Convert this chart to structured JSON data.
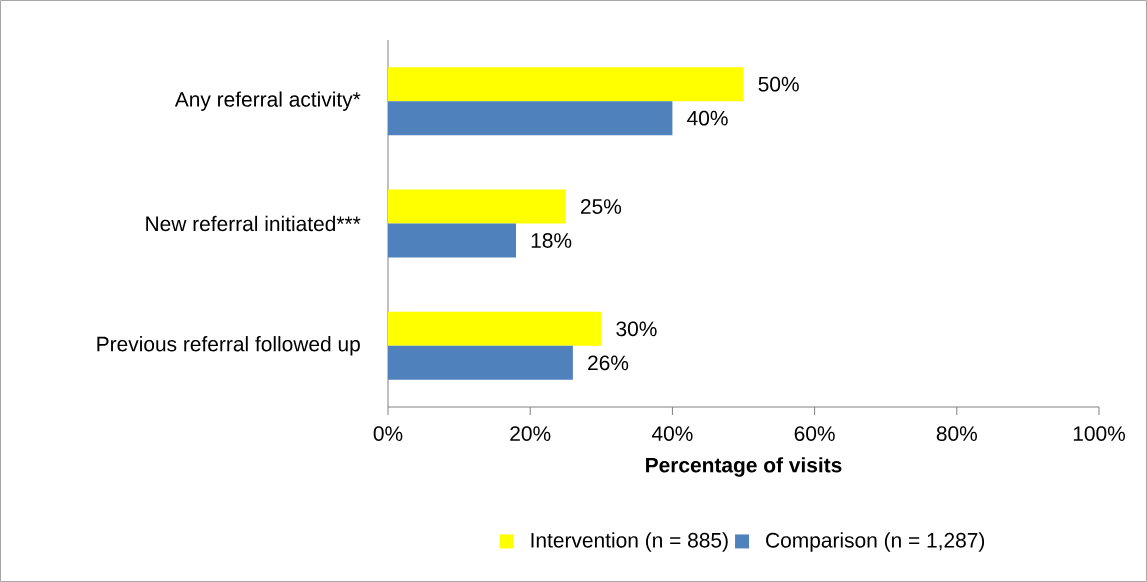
{
  "chart_data": {
    "type": "bar",
    "orientation": "horizontal",
    "categories": [
      "Any referral activity*",
      "New referral initiated***",
      "Previous referral followed up"
    ],
    "series": [
      {
        "name": "Intervention (n = 885)",
        "color": "#ffff00",
        "values": [
          50,
          25,
          30
        ],
        "value_labels": [
          "50%",
          "25%",
          "30%"
        ]
      },
      {
        "name": "Comparison (n = 1,287)",
        "color": "#4f81bd",
        "values": [
          40,
          18,
          26
        ],
        "value_labels": [
          "40%",
          "18%",
          "26%"
        ]
      }
    ],
    "xlabel": "Percentage of visits",
    "xlim": [
      0,
      100
    ],
    "xticks": [
      {
        "value": 0,
        "label": "0%"
      },
      {
        "value": 20,
        "label": "20%"
      },
      {
        "value": 40,
        "label": "40%"
      },
      {
        "value": 60,
        "label": "60%"
      },
      {
        "value": 80,
        "label": "80%"
      },
      {
        "value": 100,
        "label": "100%"
      }
    ],
    "legend": "bottom"
  }
}
